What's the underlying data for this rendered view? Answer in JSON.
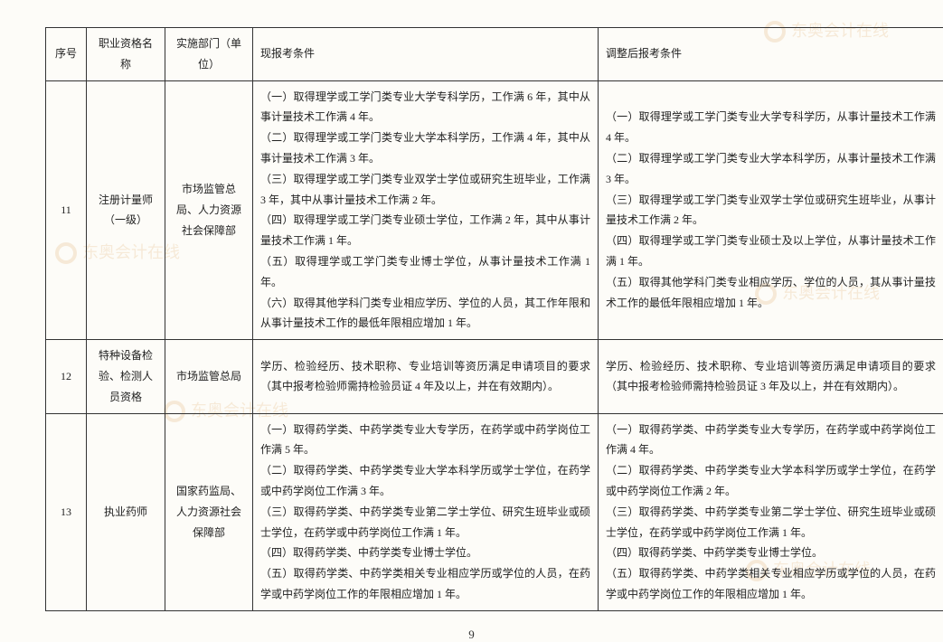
{
  "page_number": "9",
  "headers": {
    "seq": "序号",
    "name": "职业资格名称",
    "dept": "实施部门（单位）",
    "current": "现报考条件",
    "adjusted": "调整后报考条件"
  },
  "rows": [
    {
      "seq": "11",
      "name": "注册计量师（一级）",
      "dept": "市场监管总局、人力资源社会保障部",
      "current": "（一）取得理学或工学门类专业大学专科学历，工作满 6 年，其中从事计量技术工作满 4 年。\n（二）取得理学或工学门类专业大学本科学历，工作满 4 年，其中从事计量技术工作满 3 年。\n（三）取得理学或工学门类专业双学士学位或研究生班毕业，工作满 3 年，其中从事计量技术工作满 2 年。\n（四）取得理学或工学门类专业硕士学位，工作满 2 年，其中从事计量技术工作满 1 年。\n（五）取得理学或工学门类专业博士学位，从事计量技术工作满 1 年。\n（六）取得其他学科门类专业相应学历、学位的人员，其工作年限和从事计量技术工作的最低年限相应增加 1 年。",
      "adjusted": "（一）取得理学或工学门类专业大学专科学历，从事计量技术工作满 4 年。\n（二）取得理学或工学门类专业大学本科学历，从事计量技术工作满 3 年。\n（三）取得理学或工学门类专业双学士学位或研究生班毕业，从事计量技术工作满 2 年。\n（四）取得理学或工学门类专业硕士及以上学位，从事计量技术工作满 1 年。\n（五）取得其他学科门类专业相应学历、学位的人员，其从事计量技术工作的最低年限相应增加 1 年。"
    },
    {
      "seq": "12",
      "name": "特种设备检验、检测人员资格",
      "dept": "市场监管总局",
      "current": "学历、检验经历、技术职称、专业培训等资历满足申请项目的要求（其中报考检验师需持检验员证 4 年及以上，并在有效期内）。",
      "adjusted": "学历、检验经历、技术职称、专业培训等资历满足申请项目的要求（其中报考检验师需持检验员证 3 年及以上，并在有效期内）。"
    },
    {
      "seq": "13",
      "name": "执业药师",
      "dept": "国家药监局、人力资源社会保障部",
      "current": "（一）取得药学类、中药学类专业大专学历，在药学或中药学岗位工作满 5 年。\n（二）取得药学类、中药学类专业大学本科学历或学士学位，在药学或中药学岗位工作满 3 年。\n（三）取得药学类、中药学类专业第二学士学位、研究生班毕业或硕士学位，在药学或中药学岗位工作满 1 年。\n（四）取得药学类、中药学类专业博士学位。\n（五）取得药学类、中药学类相关专业相应学历或学位的人员，在药学或中药学岗位工作的年限相应增加 1 年。",
      "adjusted": "（一）取得药学类、中药学类专业大专学历，在药学或中药学岗位工作满 4 年。\n（二）取得药学类、中药学类专业大学本科学历或学士学位，在药学或中药学岗位工作满 2 年。\n（三）取得药学类、中药学类专业第二学士学位、研究生班毕业或硕士学位，在药学或中药学岗位工作满 1 年。\n（四）取得药学类、中药学类专业博士学位。\n（五）取得药学类、中药学类相关专业相应学历或学位的人员，在药学或中药学岗位工作的年限相应增加 1 年。"
    }
  ],
  "watermark_text": "东奥会计在线",
  "colors": {
    "border": "#333333",
    "text": "#222222",
    "background": "#fdfcf8",
    "watermark": "#f0d8b8"
  },
  "fonts": {
    "body_size": 12,
    "header_size": 12,
    "page_num_size": 13
  }
}
